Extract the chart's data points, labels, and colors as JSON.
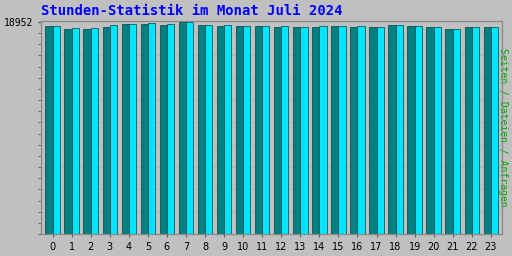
{
  "title": "Stunden-Statistik im Monat Juli 2024",
  "ylabel": "Seiten / Dateien / Anfragen",
  "xlabel_ticks": [
    "0",
    "1",
    "2",
    "3",
    "4",
    "5",
    "6",
    "7",
    "8",
    "9",
    "10",
    "11",
    "12",
    "13",
    "14",
    "15",
    "16",
    "17",
    "18",
    "19",
    "20",
    "21",
    "22",
    "23"
  ],
  "ytick_label": "18952",
  "ytick_value": 18952,
  "background_color": "#c0c0c0",
  "plot_bg_color": "#c0c0c0",
  "title_color": "#0000ff",
  "ylabel_color": "#00aa00",
  "tick_color": "#000000",
  "bar1_color": "#008080",
  "bar2_color": "#00e5ff",
  "bar_edge_color": "#004444",
  "bar1_values": [
    18600,
    18400,
    18400,
    18560,
    18800,
    18820,
    18750,
    18952,
    18700,
    18660,
    18650,
    18640,
    18580,
    18560,
    18570,
    18620,
    18570,
    18560,
    18680,
    18640,
    18560,
    18360,
    18500,
    18530
  ],
  "bar2_values": [
    18640,
    18420,
    18440,
    18700,
    18840,
    18860,
    18800,
    18952,
    18720,
    18680,
    18670,
    18660,
    18600,
    18580,
    18610,
    18640,
    18610,
    18580,
    18720,
    18660,
    18580,
    18380,
    18540,
    18560
  ],
  "ymax": 19100,
  "ymin": 0,
  "bar_width": 0.38,
  "figsize": [
    5.12,
    2.56
  ],
  "dpi": 100
}
